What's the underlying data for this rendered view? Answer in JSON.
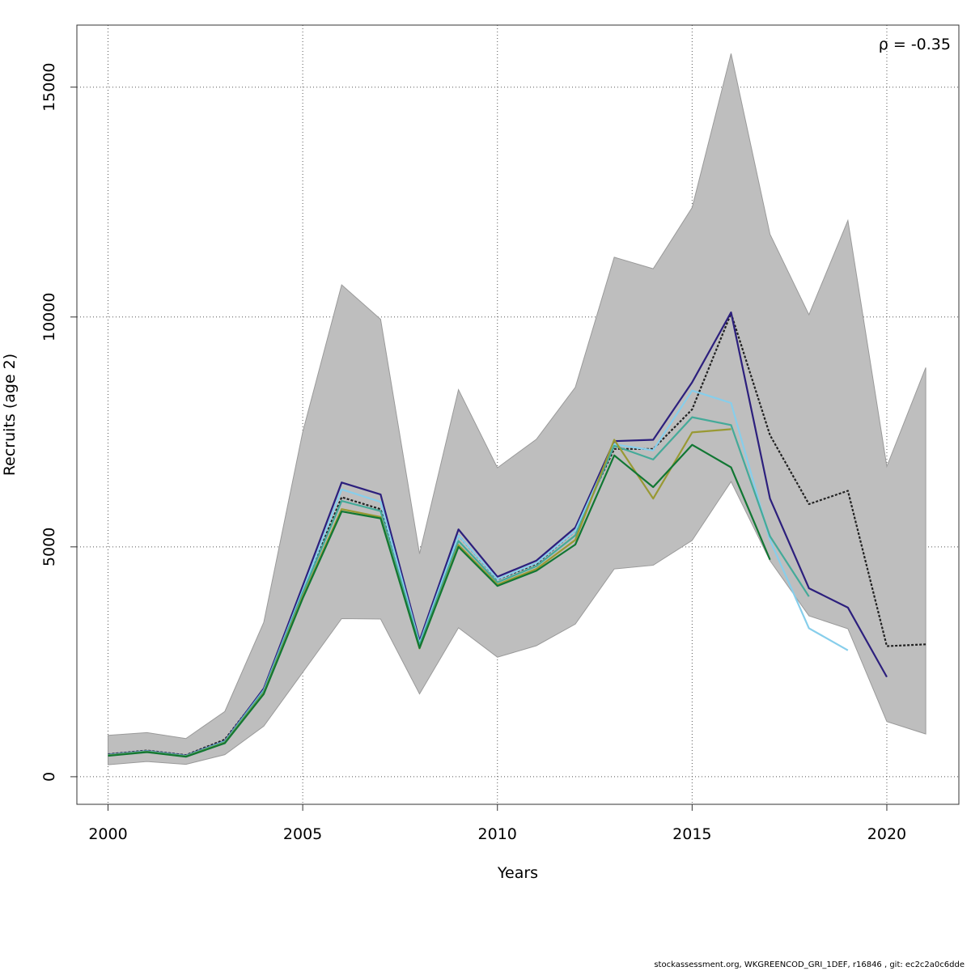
{
  "chart_data": {
    "type": "line",
    "xlabel": "Years",
    "ylabel": "Recruits (age 2)",
    "xlim": [
      1999.2,
      2021.85
    ],
    "ylim": [
      -600,
      16350
    ],
    "x_ticks": [
      2000,
      2005,
      2010,
      2015,
      2020
    ],
    "y_ticks": [
      0,
      5000,
      10000,
      15000
    ],
    "grid": true,
    "annotation": "ρ = -0.35",
    "band": {
      "color": "#bebebe",
      "x": [
        2000,
        2001,
        2002,
        2003,
        2004,
        2005,
        2006,
        2007,
        2008,
        2009,
        2010,
        2011,
        2012,
        2013,
        2014,
        2015,
        2016,
        2017,
        2018,
        2019,
        2020,
        2021
      ],
      "upper": [
        900,
        960,
        830,
        1420,
        3360,
        7500,
        10700,
        9950,
        4850,
        8420,
        6720,
        7340,
        8470,
        11300,
        11050,
        12380,
        15730,
        11800,
        10050,
        12100,
        6750,
        8900
      ],
      "lower": [
        260,
        330,
        270,
        480,
        1100,
        2270,
        3440,
        3430,
        1800,
        3240,
        2600,
        2850,
        3320,
        4520,
        4600,
        5140,
        6420,
        4700,
        3500,
        3220,
        1200,
        930
      ]
    },
    "series": [
      {
        "color": "#222222",
        "dashed": true,
        "x": [
          2000,
          2001,
          2002,
          2003,
          2004,
          2005,
          2006,
          2007,
          2008,
          2009,
          2010,
          2011,
          2012,
          2013,
          2014,
          2015,
          2016,
          2017,
          2018,
          2019,
          2020,
          2021
        ],
        "values": [
          490,
          570,
          470,
          810,
          1900,
          4050,
          6080,
          5820,
          2880,
          5250,
          4290,
          4630,
          5350,
          7130,
          7130,
          7990,
          10080,
          7430,
          5930,
          6220,
          2840,
          2880
        ]
      },
      {
        "color": "#2c1f7d",
        "x": [
          2000,
          2001,
          2002,
          2003,
          2004,
          2005,
          2006,
          2007,
          2008,
          2009,
          2010,
          2011,
          2012,
          2013,
          2014,
          2015,
          2016,
          2017,
          2018,
          2019,
          2020
        ],
        "values": [
          480,
          560,
          460,
          780,
          1920,
          4150,
          6400,
          6140,
          2960,
          5380,
          4350,
          4700,
          5420,
          7300,
          7330,
          8580,
          10100,
          6050,
          4100,
          3680,
          2170
        ]
      },
      {
        "color": "#87ceeb",
        "x": [
          2000,
          2001,
          2002,
          2003,
          2004,
          2005,
          2006,
          2007,
          2008,
          2009,
          2010,
          2011,
          2012,
          2013,
          2014,
          2015,
          2016,
          2017,
          2018,
          2019
        ],
        "values": [
          475,
          555,
          455,
          770,
          1880,
          4050,
          6250,
          5980,
          2900,
          5250,
          4300,
          4650,
          5350,
          7230,
          7100,
          8400,
          8130,
          5150,
          3230,
          2750
        ]
      },
      {
        "color": "#44aa99",
        "x": [
          2000,
          2001,
          2002,
          2003,
          2004,
          2005,
          2006,
          2007,
          2008,
          2009,
          2010,
          2011,
          2012,
          2013,
          2014,
          2015,
          2016,
          2017,
          2018
        ],
        "values": [
          470,
          550,
          450,
          760,
          1860,
          4000,
          6000,
          5780,
          2860,
          5130,
          4230,
          4580,
          5250,
          7200,
          6900,
          7820,
          7650,
          5230,
          3920
        ]
      },
      {
        "color": "#999933",
        "x": [
          2000,
          2001,
          2002,
          2003,
          2004,
          2005,
          2006,
          2007,
          2008,
          2009,
          2010,
          2011,
          2012,
          2013,
          2014,
          2015,
          2016
        ],
        "values": [
          460,
          540,
          440,
          740,
          1820,
          3920,
          5820,
          5650,
          2790,
          5040,
          4180,
          4520,
          5150,
          7330,
          6050,
          7490,
          7560
        ]
      },
      {
        "color": "#117733",
        "x": [
          2000,
          2001,
          2002,
          2003,
          2004,
          2005,
          2006,
          2007,
          2008,
          2009,
          2010,
          2011,
          2012,
          2013,
          2014,
          2015,
          2016,
          2017
        ],
        "values": [
          455,
          535,
          435,
          730,
          1800,
          3880,
          5770,
          5620,
          2800,
          5000,
          4150,
          4480,
          5050,
          6990,
          6300,
          7220,
          6730,
          4720
        ]
      }
    ]
  },
  "footer": "stockassessment.org, WKGREENCOD_GRI_1DEF, r16846 , git: ec2c2a0c6dde"
}
